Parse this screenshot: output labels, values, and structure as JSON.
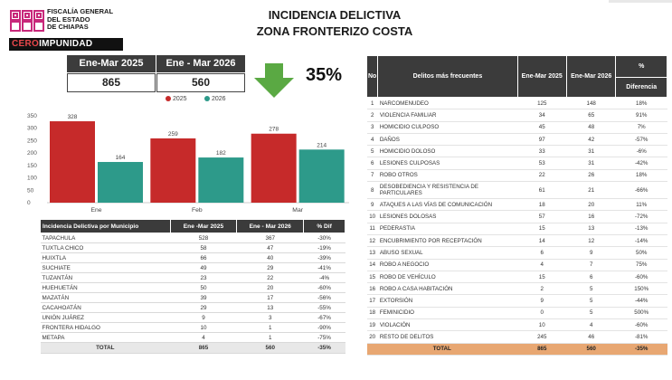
{
  "header": {
    "org_line1": "FISCALÍA GENERAL",
    "org_line2": "DEL ESTADO",
    "org_line3": "DE CHIAPAS",
    "slogan_a": "CERO",
    "slogan_b": "IMPUNIDAD",
    "title1": "INCIDENCIA DELICTIVA",
    "title2": "ZONA FRONTERIZO COSTA"
  },
  "colors": {
    "c2025": "#c62a2a",
    "c2026": "#2d9a8a",
    "arrow": "#5aa943"
  },
  "summary": {
    "h1": "Ene-Mar 2025",
    "v1": "865",
    "h2": "Ene - Mar 2026",
    "v2": "560",
    "pct": "35%"
  },
  "chart_data": {
    "type": "bar",
    "categories": [
      "Ene",
      "Feb",
      "Mar"
    ],
    "series": [
      {
        "name": "2025",
        "values": [
          328,
          259,
          278
        ]
      },
      {
        "name": "2026",
        "values": [
          164,
          182,
          214
        ]
      }
    ],
    "ylim": [
      0,
      350
    ],
    "yticks": [
      "0",
      "50",
      "100",
      "150",
      "200",
      "250",
      "300",
      "350"
    ],
    "legend": [
      "2025",
      "2026"
    ]
  },
  "municipios": {
    "headers": [
      "Incidencia Delictiva por Municipio",
      "Ene -Mar 2025",
      "Ene - Mar 2026",
      "% Dif"
    ],
    "rows": [
      [
        "TAPACHULA",
        "528",
        "367",
        "-30%"
      ],
      [
        "TUXTLA CHICO",
        "58",
        "47",
        "-19%"
      ],
      [
        "HUIXTLA",
        "66",
        "40",
        "-39%"
      ],
      [
        "SUCHIATE",
        "49",
        "29",
        "-41%"
      ],
      [
        "TUZANTÁN",
        "23",
        "22",
        "-4%"
      ],
      [
        "HUEHUETÁN",
        "50",
        "20",
        "-60%"
      ],
      [
        "MAZATÁN",
        "39",
        "17",
        "-56%"
      ],
      [
        "CACAHOATÁN",
        "29",
        "13",
        "-55%"
      ],
      [
        "UNIÓN JUÁREZ",
        "9",
        "3",
        "-67%"
      ],
      [
        "FRONTERA HIDALGO",
        "10",
        "1",
        "-90%"
      ],
      [
        "METAPA",
        "4",
        "1",
        "-75%"
      ]
    ],
    "total": [
      "TOTAL",
      "865",
      "560",
      "-35%"
    ]
  },
  "delitos": {
    "h_no": "No",
    "h_name": "Delitos más frecuentes",
    "h_2025": "Ene-Mar 2025",
    "h_2026": "Ene-Mar 2026",
    "h_pct": "%",
    "h_dif": "Diferencia",
    "rows": [
      [
        "1",
        "NARCOMENUDEO",
        "125",
        "148",
        "18%"
      ],
      [
        "2",
        "VIOLENCIA FAMILIAR",
        "34",
        "65",
        "91%"
      ],
      [
        "3",
        "HOMICIDIO CULPOSO",
        "45",
        "48",
        "7%"
      ],
      [
        "4",
        "DAÑOS",
        "97",
        "42",
        "-57%"
      ],
      [
        "5",
        "HOMICIDIO DOLOSO",
        "33",
        "31",
        "-6%"
      ],
      [
        "6",
        "LESIONES CULPOSAS",
        "53",
        "31",
        "-42%"
      ],
      [
        "7",
        "ROBO OTROS",
        "22",
        "26",
        "18%"
      ],
      [
        "8",
        "DESOBEDIENCIA Y RESISTENCIA DE PARTICULARES",
        "61",
        "21",
        "-66%"
      ],
      [
        "9",
        "ATAQUES A LAS VÍAS DE COMUNICACIÓN",
        "18",
        "20",
        "11%"
      ],
      [
        "10",
        "LESIONES DOLOSAS",
        "57",
        "16",
        "-72%"
      ],
      [
        "11",
        "PEDERASTIA",
        "15",
        "13",
        "-13%"
      ],
      [
        "12",
        "ENCUBRIMIENTO POR RECEPTACIÓN",
        "14",
        "12",
        "-14%"
      ],
      [
        "13",
        "ABUSO SEXUAL",
        "6",
        "9",
        "50%"
      ],
      [
        "14",
        "ROBO A NEGOCIO",
        "4",
        "7",
        "75%"
      ],
      [
        "15",
        "ROBO DE VEHÍCULO",
        "15",
        "6",
        "-60%"
      ],
      [
        "16",
        "ROBO A CASA HABITACIÓN",
        "2",
        "5",
        "150%"
      ],
      [
        "17",
        "EXTORSIÓN",
        "9",
        "5",
        "-44%"
      ],
      [
        "18",
        "FEMINICIDIO",
        "0",
        "5",
        "500%"
      ],
      [
        "19",
        "VIOLACIÓN",
        "10",
        "4",
        "-60%"
      ],
      [
        "20",
        "RESTO DE DELITOS",
        "245",
        "46",
        "-81%"
      ]
    ],
    "total": [
      "TOTAL",
      "865",
      "560",
      "-35%"
    ]
  }
}
